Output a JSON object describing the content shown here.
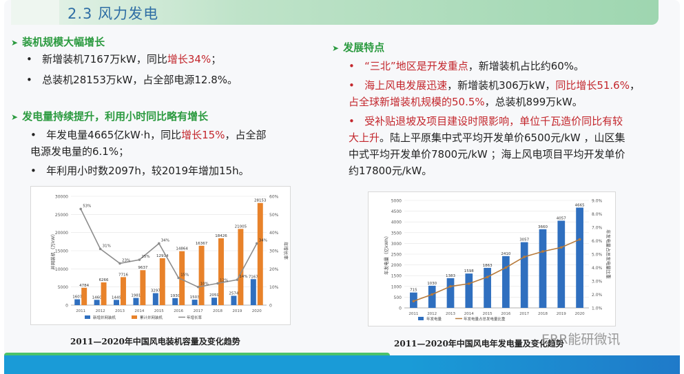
{
  "section_title": "2.3 风力发电",
  "left": {
    "h1": "装机规模大幅增长",
    "b1_pre": "新增装机7167万kW，同比",
    "b1_red": "增长34%",
    "b1_post": "；",
    "b2": "总装机28153万kW，占全部电源12.8%。",
    "h2": "发电量持续提升，利用小时同比略有增长",
    "b3_pre": "年发电量4665亿kW·h，同比",
    "b3_red": "增长15%",
    "b3_post": "，占全部",
    "b3_line2": "电源发电量的6.1%；",
    "b4": "年利用小时数2097h，较2019年增加15h。"
  },
  "right": {
    "h1": "发展特点",
    "r1_red": "“三北”地区是开发重点",
    "r1_post": "，新增装机占比约60%。",
    "r2_red": "海上风电发展迅速",
    "r2_mid": "，新增装机306万kW，",
    "r2_red2": "同比增长51.6%",
    "r2_post": "，",
    "r2_line2_red": "占全球新增装机规模的50.5%",
    "r2_line2_post": "，总装机899万kW。",
    "r3_line1": "受补贴退坡及项目建设时限影响，单位千瓦造价同比有较",
    "r3_line2_red": "大上升",
    "r3_line2_post": "。陆上平原集中式平均开发单价6500元/kW ，山区集",
    "r3_line3": "中式平均开发单价7800元/kW ；海上风电项目平均开发单价",
    "r3_line4": "约17800元/kW。"
  },
  "captions": {
    "left": "2011—2020年中国风电装机容量及变化趋势",
    "right": "2011—2020年中国风电年发电量及变化趋势"
  },
  "watermark": "ERR能研微讯",
  "colors": {
    "heading": "#2b9a3f",
    "red": "#c3262c",
    "blue_bar": "#2f6fbf",
    "orange_bar": "#e8822a",
    "line": "#8c8c8c",
    "line2": "#b77a3a"
  },
  "chart_data": [
    {
      "type": "bar",
      "categories": [
        "2011",
        "2012",
        "2013",
        "2014",
        "2015",
        "2016",
        "2017",
        "2018",
        "2019",
        "2020"
      ],
      "series": [
        {
          "name": "新增并网装机",
          "kind": "bar",
          "axis": "left",
          "values": [
            1607,
            1460,
            1449,
            1981,
            3297,
            1930,
            1503,
            2059,
            2574,
            7167
          ]
        },
        {
          "name": "累计并网装机",
          "kind": "bar",
          "axis": "left",
          "values": [
            4784,
            6266,
            7716,
            9637,
            12934,
            14864,
            16367,
            18426,
            21005,
            28153
          ]
        },
        {
          "name": "年增长率",
          "kind": "line",
          "axis": "right",
          "values": [
            53,
            31,
            23,
            25,
            34,
            15,
            10,
            12,
            14,
            34
          ]
        }
      ],
      "value_labels": {
        "新增并网装机": [
          "1607",
          "1460",
          "1449",
          "1981",
          "3297",
          "1930",
          "1503",
          "2059",
          "2574",
          "7167"
        ],
        "累计并网装机": [
          "4784",
          "6266",
          "7716",
          "9637",
          "12934",
          "14864",
          "16367",
          "18426",
          "21005",
          "28153"
        ],
        "年增长率": [
          "53%",
          "31%",
          "23%",
          "25%",
          "34%",
          "15%",
          "10%",
          "12%",
          "14%",
          "34%"
        ]
      },
      "ylabel": "并网装机（万kW）",
      "y2label": "年增长率",
      "ylim": [
        0,
        30000
      ],
      "y2lim": [
        0,
        60
      ],
      "yticks": [
        "0",
        "5000",
        "10000",
        "15000",
        "20000",
        "25000",
        "30000"
      ],
      "y2ticks": [
        "0",
        "10%",
        "20%",
        "30%",
        "40%",
        "50%",
        "60%"
      ],
      "legend": "bottom"
    },
    {
      "type": "bar",
      "categories": [
        "2011",
        "2012",
        "2013",
        "2014",
        "2015",
        "2016",
        "2017",
        "2018",
        "2019",
        "2020"
      ],
      "series": [
        {
          "name": "年发电量",
          "kind": "bar",
          "axis": "left",
          "values": [
            715,
            1030,
            1383,
            1598,
            1863,
            2410,
            3057,
            3660,
            4057,
            4665
          ]
        },
        {
          "name": "年发电量占总发电量比重",
          "kind": "line",
          "axis": "right",
          "values": [
            1.5,
            2.0,
            2.6,
            2.8,
            3.3,
            4.0,
            4.8,
            5.2,
            5.5,
            6.1
          ]
        }
      ],
      "value_labels": {
        "年发电量": [
          "715",
          "1030",
          "1383",
          "1598",
          "1863",
          "2410",
          "3057",
          "3660",
          "4057",
          "4665"
        ]
      },
      "ylabel": "年发电量（亿kWh）",
      "y2label": "年发电量占总发电量比重",
      "ylim": [
        0,
        5000
      ],
      "y2lim": [
        1,
        9
      ],
      "yticks": [
        "0",
        "500",
        "1000",
        "1500",
        "2000",
        "2500",
        "3000",
        "3500",
        "4000",
        "4500",
        "5000"
      ],
      "y2ticks": [
        "1.0%",
        "2.0%",
        "3.0%",
        "4.0%",
        "5.0%",
        "6.0%",
        "7.0%",
        "8.0%",
        "9.0%"
      ],
      "legend": "bottom"
    }
  ]
}
